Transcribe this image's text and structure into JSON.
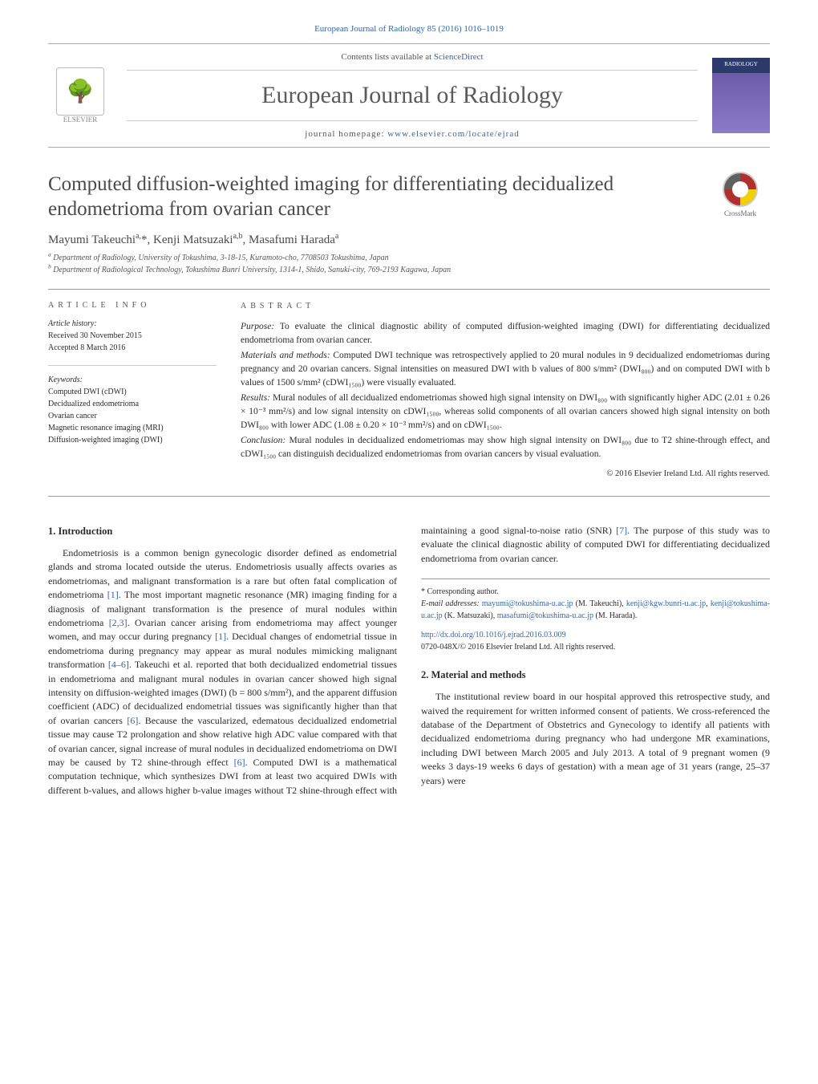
{
  "header_citation": "European Journal of Radiology 85 (2016) 1016–1019",
  "masthead": {
    "elsevier_label": "ELSEVIER",
    "contents_prefix": "Contents lists available at ",
    "contents_link": "ScienceDirect",
    "journal_name": "European Journal of Radiology",
    "homepage_prefix": "journal homepage: ",
    "homepage_url": "www.elsevier.com/locate/ejrad",
    "cover_label": "RADIOLOGY"
  },
  "article_title": "Computed diffusion-weighted imaging for differentiating decidualized endometrioma from ovarian cancer",
  "crossmark_label": "CrossMark",
  "authors_html": "Mayumi Takeuchi<sup>a,</sup>*, Kenji Matsuzaki<sup>a,b</sup>, Masafumi Harada<sup>a</sup>",
  "affiliations": {
    "a": "Department of Radiology, University of Tokushima, 3-18-15, Kuramoto-cho, 7708503 Tokushima, Japan",
    "b": "Department of Radiological Technology, Tokushima Bunri University, 1314-1, Shido, Sanuki-city, 769-2193 Kagawa, Japan"
  },
  "info": {
    "heading": "article info",
    "history_label": "Article history:",
    "received": "Received 30 November 2015",
    "accepted": "Accepted 8 March 2016",
    "keywords_label": "Keywords:",
    "keywords": [
      "Computed DWI (cDWI)",
      "Decidualized endometrioma",
      "Ovarian cancer",
      "Magnetic resonance imaging (MRI)",
      "Diffusion-weighted imaging (DWI)"
    ]
  },
  "abstract": {
    "heading": "abstract",
    "purpose_lead": "Purpose:",
    "purpose": " To evaluate the clinical diagnostic ability of computed diffusion-weighted imaging (DWI) for differentiating decidualized endometrioma from ovarian cancer.",
    "methods_lead": "Materials and methods:",
    "methods": " Computed DWI technique was retrospectively applied to 20 mural nodules in 9 decidualized endometriomas during pregnancy and 20 ovarian cancers. Signal intensities on measured DWI with b values of 800 s/mm² (DWI₈₀₀) and on computed DWI with b values of 1500 s/mm² (cDWI₁₅₀₀) were visually evaluated.",
    "results_lead": "Results:",
    "results": " Mural nodules of all decidualized endometriomas showed high signal intensity on DWI₈₀₀ with significantly higher ADC (2.01 ± 0.26 × 10⁻³ mm²/s) and low signal intensity on cDWI₁₅₀₀, whereas solid components of all ovarian cancers showed high signal intensity on both DWI₈₀₀ with lower ADC (1.08 ± 0.20 × 10⁻³ mm²/s) and on cDWI₁₅₀₀.",
    "conclusion_lead": "Conclusion:",
    "conclusion": " Mural nodules in decidualized endometriomas may show high signal intensity on DWI₈₀₀ due to T2 shine-through effect, and cDWI₁₅₀₀ can distinguish decidualized endometriomas from ovarian cancers by visual evaluation.",
    "copyright": "© 2016 Elsevier Ireland Ltd. All rights reserved."
  },
  "body": {
    "h1": "1. Introduction",
    "p1_a": "Endometriosis is a common benign gynecologic disorder defined as endometrial glands and stroma located outside the uterus. Endometriosis usually affects ovaries as endometriomas, and malignant transformation is a rare but often fatal complication of endometrioma ",
    "r1": "[1]",
    "p1_b": ". The most important magnetic resonance (MR) imaging finding for a diagnosis of malignant transformation is the presence of mural nodules within endometrioma ",
    "r23": "[2,3]",
    "p1_c": ". Ovarian cancer arising from endometrioma may affect younger women, and may occur during pregnancy ",
    "r1b": "[1]",
    "p1_d": ". Decidual changes of endometrial tissue in endometrioma during pregnancy may appear as mural nodules mimicking malignant transformation ",
    "r46": "[4–6]",
    "p1_e": ". Takeuchi et al. reported that both decidualized endometrial tissues in endometrioma and malignant mural nodules in ovarian cancer showed high signal intensity on diffusion-weighted images (DWI) (b = 800 s/mm²), and the apparent diffusion coefficient (ADC) of decidualized endometrial tissues was significantly higher than ",
    "p2_a": "that of ovarian cancers ",
    "r6": "[6]",
    "p2_b": ". Because the vascularized, edematous decidualized endometrial tissue may cause T2 prolongation and show relative high ADC value compared with that of ovarian cancer, signal increase of mural nodules in decidualized endometrioma on DWI may be caused by T2 shine-through effect ",
    "r6b": "[6]",
    "p2_c": ". Computed DWI is a mathematical computation technique, which synthesizes DWI from at least two acquired DWIs with different b-values, and allows higher b-value images without T2 shine-through effect with maintaining a good signal-to-noise ratio (SNR) ",
    "r7": "[7]",
    "p2_d": ". The purpose of this study was to evaluate the clinical diagnostic ability of computed DWI for differentiating decidualized endometrioma from ovarian cancer.",
    "h2": "2. Material and methods",
    "p3": "The institutional review board in our hospital approved this retrospective study, and waived the requirement for written informed consent of patients. We cross-referenced the database of the Department of Obstetrics and Gynecology to identify all patients with decidualized endometrioma during pregnancy who had undergone MR examinations, including DWI between March 2005 and July 2013. A total of 9 pregnant women (9 weeks 3 days-19 weeks 6 days of gestation) with a mean age of 31 years (range, 25–37 years) were"
  },
  "footer": {
    "corr": "* Corresponding author.",
    "emails_label": "E-mail addresses:",
    "e1": "mayumi@tokushima-u.ac.jp",
    "e1n": " (M. Takeuchi),",
    "e2": "kenji@kgw.bunri-u.ac.jp",
    "e2s": ", ",
    "e2b": "kenji@tokushima-u.ac.jp",
    "e2n": " (K. Matsuzaki),",
    "e3": "masafumi@tokushima-u.ac.jp",
    "e3n": " (M. Harada).",
    "doi": "http://dx.doi.org/10.1016/j.ejrad.2016.03.009",
    "issn": "0720-048X/© 2016 Elsevier Ireland Ltd. All rights reserved."
  },
  "colors": {
    "link": "#3366a8",
    "text": "#2b2b2b",
    "muted": "#555",
    "rule": "#999"
  }
}
